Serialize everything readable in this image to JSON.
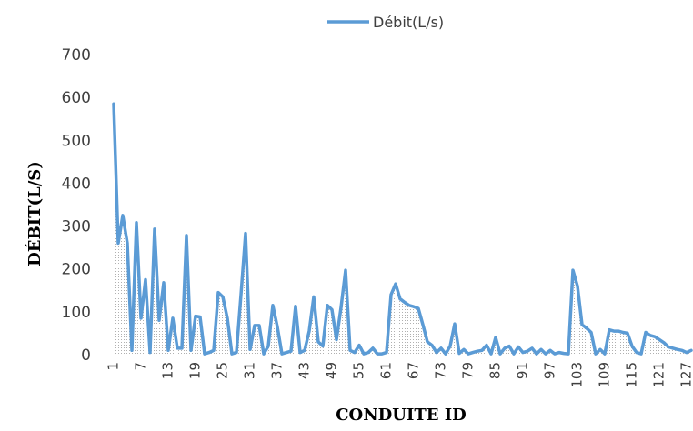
{
  "chart_data": {
    "type": "area",
    "xlabel": "CONDUITE ID",
    "ylabel": "DÉBIT(L/S)",
    "ylim": [
      0,
      700
    ],
    "yticks": [
      0,
      100,
      200,
      300,
      400,
      500,
      600,
      700
    ],
    "xticks": [
      1,
      7,
      13,
      19,
      25,
      31,
      37,
      43,
      49,
      55,
      61,
      67,
      73,
      79,
      85,
      91,
      97,
      103,
      109,
      115,
      121,
      127
    ],
    "x_range": [
      1,
      128
    ],
    "grid": false,
    "legend_position": "top",
    "series": [
      {
        "name": "Débit(L/s)",
        "color": "#5b9bd5",
        "x": [
          1,
          2,
          3,
          4,
          5,
          6,
          7,
          8,
          9,
          10,
          11,
          12,
          13,
          14,
          15,
          16,
          17,
          18,
          19,
          20,
          21,
          22,
          23,
          24,
          25,
          26,
          27,
          28,
          29,
          30,
          31,
          32,
          33,
          34,
          35,
          36,
          37,
          38,
          39,
          40,
          41,
          42,
          43,
          44,
          45,
          46,
          47,
          48,
          49,
          50,
          51,
          52,
          53,
          54,
          55,
          56,
          57,
          58,
          59,
          60,
          61,
          62,
          63,
          64,
          65,
          66,
          67,
          68,
          69,
          70,
          71,
          72,
          73,
          74,
          75,
          76,
          77,
          78,
          79,
          80,
          81,
          82,
          83,
          84,
          85,
          86,
          87,
          88,
          89,
          90,
          91,
          92,
          93,
          94,
          95,
          96,
          97,
          98,
          99,
          100,
          101,
          102,
          103,
          104,
          105,
          106,
          107,
          108,
          109,
          110,
          111,
          112,
          113,
          114,
          115,
          116,
          117,
          118,
          119,
          120,
          121,
          122,
          123,
          124,
          125,
          126,
          127,
          128
        ],
        "values": [
          585,
          260,
          325,
          260,
          10,
          308,
          85,
          175,
          5,
          293,
          80,
          168,
          10,
          85,
          15,
          15,
          278,
          10,
          90,
          88,
          2,
          5,
          10,
          145,
          135,
          85,
          2,
          5,
          140,
          283,
          12,
          68,
          68,
          2,
          20,
          115,
          65,
          2,
          5,
          8,
          113,
          5,
          10,
          55,
          135,
          30,
          20,
          115,
          105,
          35,
          110,
          197,
          10,
          5,
          22,
          2,
          5,
          15,
          2,
          2,
          5,
          140,
          165,
          130,
          122,
          115,
          112,
          108,
          70,
          30,
          22,
          5,
          15,
          2,
          20,
          72,
          3,
          12,
          2,
          5,
          8,
          10,
          22,
          2,
          40,
          2,
          15,
          20,
          2,
          18,
          5,
          8,
          15,
          2,
          12,
          2,
          10,
          2,
          5,
          3,
          2,
          197,
          160,
          70,
          62,
          52,
          2,
          12,
          2,
          58,
          55,
          55,
          52,
          50,
          20,
          5,
          2,
          52,
          45,
          42,
          35,
          28,
          18,
          15,
          12,
          10,
          5,
          10
        ]
      }
    ]
  }
}
